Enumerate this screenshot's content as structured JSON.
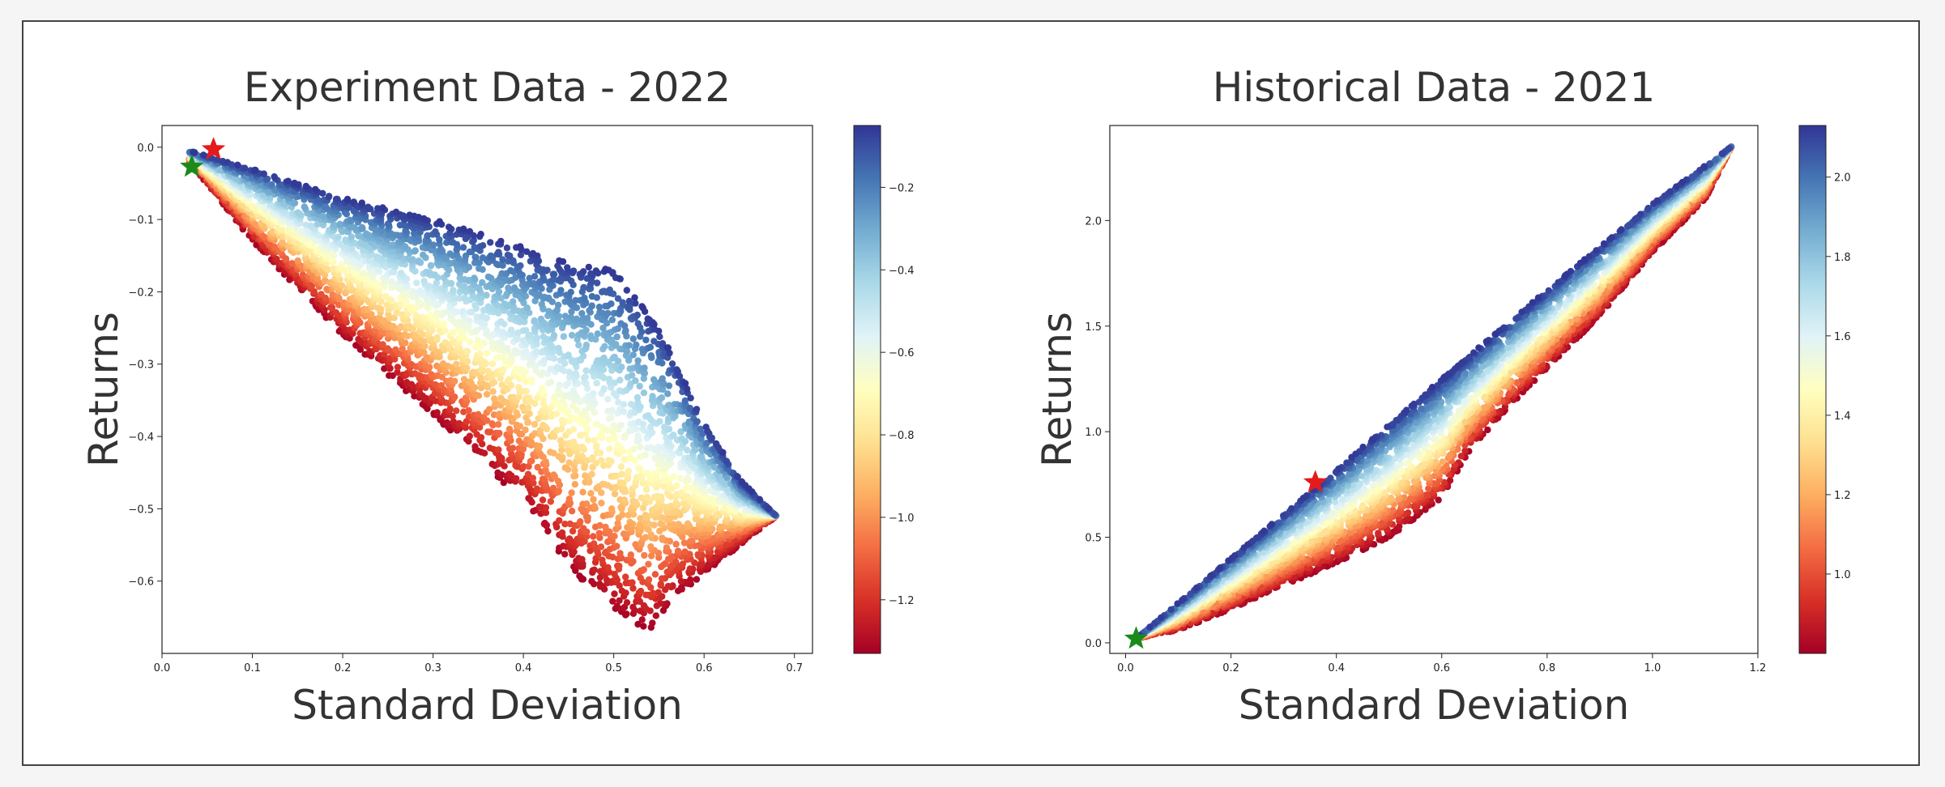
{
  "chart_data": [
    {
      "type": "scatter",
      "title": "Experiment Data - 2022",
      "xlabel": "Standard Deviation",
      "ylabel": "Returns",
      "xlim": [
        0.0,
        0.72
      ],
      "ylim": [
        -0.7,
        0.03
      ],
      "xticks": [
        "0.0",
        "0.1",
        "0.2",
        "0.3",
        "0.4",
        "0.5",
        "0.6",
        "0.7"
      ],
      "yticks": [
        "0.0",
        "-0.1",
        "-0.2",
        "-0.3",
        "-0.4",
        "-0.5",
        "-0.6"
      ],
      "colorbar": {
        "range": [
          -1.33,
          -0.05
        ],
        "ticks": [
          "-0.2",
          "-0.4",
          "-0.6",
          "-0.8",
          "-1.0",
          "-1.2"
        ],
        "colormap": "RdYlBu"
      },
      "cloud_outline": {
        "upper_edge": [
          [
            0.03,
            -0.005
          ],
          [
            0.1,
            -0.03
          ],
          [
            0.2,
            -0.07
          ],
          [
            0.3,
            -0.1
          ],
          [
            0.38,
            -0.13
          ],
          [
            0.45,
            -0.16
          ],
          [
            0.5,
            -0.17
          ],
          [
            0.55,
            -0.25
          ],
          [
            0.6,
            -0.38
          ],
          [
            0.64,
            -0.46
          ],
          [
            0.68,
            -0.51
          ]
        ],
        "lower_edge": [
          [
            0.03,
            -0.02
          ],
          [
            0.1,
            -0.13
          ],
          [
            0.2,
            -0.26
          ],
          [
            0.3,
            -0.37
          ],
          [
            0.4,
            -0.49
          ],
          [
            0.45,
            -0.58
          ],
          [
            0.5,
            -0.64
          ],
          [
            0.54,
            -0.67
          ],
          [
            0.57,
            -0.62
          ],
          [
            0.62,
            -0.57
          ],
          [
            0.68,
            -0.51
          ]
        ]
      },
      "markers": [
        {
          "name": "red-star",
          "x": 0.057,
          "y": -0.003,
          "color": "#e41a1c"
        },
        {
          "name": "green-star",
          "x": 0.033,
          "y": -0.027,
          "color": "#1b8a1b"
        }
      ]
    },
    {
      "type": "scatter",
      "title": "Historical Data - 2021",
      "xlabel": "Standard Deviation",
      "ylabel": "Returns",
      "xlim": [
        -0.03,
        1.2
      ],
      "ylim": [
        -0.05,
        2.45
      ],
      "xticks": [
        "0.0",
        "0.2",
        "0.4",
        "0.6",
        "0.8",
        "1.0",
        "1.2"
      ],
      "yticks": [
        "0.0",
        "0.5",
        "1.0",
        "1.5",
        "2.0"
      ],
      "colorbar": {
        "range": [
          0.8,
          2.13
        ],
        "ticks": [
          "1.0",
          "1.2",
          "1.4",
          "1.6",
          "1.8",
          "2.0"
        ],
        "colormap": "RdYlBu"
      },
      "cloud_outline": {
        "upper_edge": [
          [
            0.02,
            0.02
          ],
          [
            0.2,
            0.4
          ],
          [
            0.4,
            0.82
          ],
          [
            0.6,
            1.25
          ],
          [
            0.8,
            1.67
          ],
          [
            1.0,
            2.08
          ],
          [
            1.15,
            2.35
          ]
        ],
        "lower_edge": [
          [
            0.02,
            0.02
          ],
          [
            0.1,
            0.06
          ],
          [
            0.2,
            0.16
          ],
          [
            0.3,
            0.27
          ],
          [
            0.4,
            0.38
          ],
          [
            0.5,
            0.5
          ],
          [
            0.6,
            0.68
          ],
          [
            0.65,
            0.9
          ],
          [
            0.72,
            1.1
          ],
          [
            0.8,
            1.3
          ],
          [
            0.9,
            1.55
          ],
          [
            1.0,
            1.85
          ],
          [
            1.1,
            2.1
          ],
          [
            1.15,
            2.35
          ]
        ]
      },
      "markers": [
        {
          "name": "red-star",
          "x": 0.36,
          "y": 0.76,
          "color": "#e41a1c"
        },
        {
          "name": "green-star",
          "x": 0.02,
          "y": 0.02,
          "color": "#1b8a1b"
        }
      ]
    }
  ]
}
